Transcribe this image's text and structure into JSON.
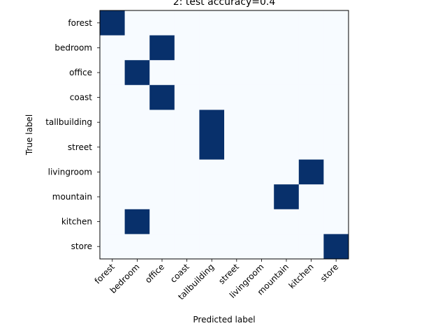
{
  "chart_data": {
    "type": "heatmap",
    "title": "2: test accuracy=0.4",
    "xlabel": "Predicted label",
    "ylabel": "True label",
    "x_categories": [
      "forest",
      "bedroom",
      "office",
      "coast",
      "tallbuilding",
      "street",
      "livingroom",
      "mountain",
      "kitchen",
      "store"
    ],
    "y_categories": [
      "forest",
      "bedroom",
      "office",
      "coast",
      "tallbuilding",
      "street",
      "livingroom",
      "mountain",
      "kitchen",
      "store"
    ],
    "matrix": [
      [
        1,
        0,
        0,
        0,
        0,
        0,
        0,
        0,
        0,
        0
      ],
      [
        0,
        0,
        1,
        0,
        0,
        0,
        0,
        0,
        0,
        0
      ],
      [
        0,
        1,
        0,
        0,
        0,
        0,
        0,
        0,
        0,
        0
      ],
      [
        0,
        0,
        1,
        0,
        0,
        0,
        0,
        0,
        0,
        0
      ],
      [
        0,
        0,
        0,
        0,
        1,
        0,
        0,
        0,
        0,
        0
      ],
      [
        0,
        0,
        0,
        0,
        1,
        0,
        0,
        0,
        0,
        0
      ],
      [
        0,
        0,
        0,
        0,
        0,
        0,
        0,
        0,
        1,
        0
      ],
      [
        0,
        0,
        0,
        0,
        0,
        0,
        0,
        1,
        0,
        0
      ],
      [
        0,
        1,
        0,
        0,
        0,
        0,
        0,
        0,
        0,
        0
      ],
      [
        0,
        0,
        0,
        0,
        0,
        0,
        0,
        0,
        0,
        1
      ]
    ],
    "colormap": {
      "low": "#f7fbff",
      "high": "#08306b"
    },
    "grid": false
  }
}
